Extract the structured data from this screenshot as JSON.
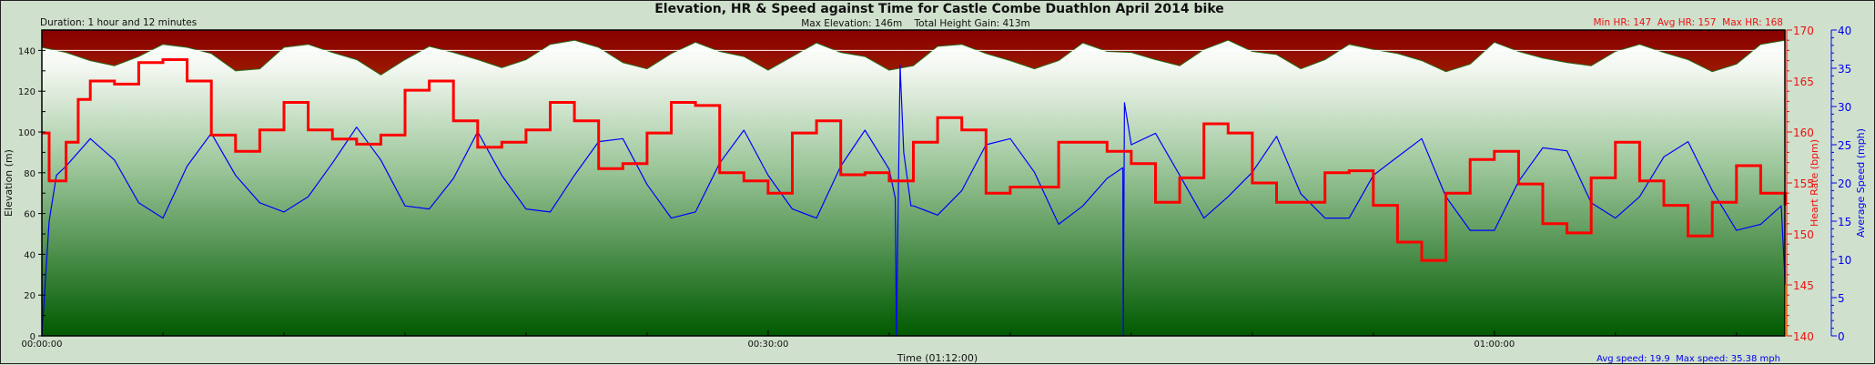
{
  "header": {
    "title": "Elevation, HR & Speed against Time for Castle Combe Duathlon April 2014 bike",
    "duration": "Duration: 1 hour and 12 minutes",
    "elevation_stats": "Max Elevation: 146m    Total Height Gain: 413m",
    "hr_stats": "Min HR: 147  Avg HR: 157  Max HR: 168"
  },
  "footer": {
    "xlabel": "Time (01:12:00)",
    "speed_stats": "Avg speed: 19.9  Max speed: 35.38 mph"
  },
  "colors": {
    "hr": "#ff0000",
    "speed": "#0000ff",
    "elevation_above": "#8b0000",
    "ground_top": "#ffffff",
    "ground_bottom": "#005a00",
    "reference_line": "#ffffff"
  },
  "chart_data": {
    "type": "line",
    "title": "Elevation, HR & Speed against Time for Castle Combe Duathlon April 2014 bike",
    "xlabel": "Time (01:12:00)",
    "x_unit": "minutes",
    "xlim": [
      0,
      72
    ],
    "xticks": [
      {
        "value": 0,
        "label": "00:00:00"
      },
      {
        "value": 30,
        "label": "00:30:00"
      },
      {
        "value": 60,
        "label": "01:00:00"
      }
    ],
    "x_minor_step": 5,
    "axes": {
      "elevation": {
        "label": "Elevation (m)",
        "range": [
          0,
          150
        ],
        "ticks": [
          "0",
          "20",
          "40",
          "60",
          "80",
          "100",
          "120",
          "140"
        ],
        "minor_step": 10,
        "reference_line": 140
      },
      "hr": {
        "label": "Heart Rate (bpm)",
        "range": [
          140,
          170
        ],
        "ticks": [
          "140",
          "145",
          "150",
          "155",
          "160",
          "165",
          "170"
        ],
        "minor_step": 1
      },
      "speed": {
        "label": "Average Speed (mph)",
        "range": [
          0,
          40
        ],
        "ticks": [
          "0",
          "5",
          "10",
          "15",
          "20",
          "25",
          "30",
          "35",
          "40"
        ],
        "minor_step": 1
      }
    },
    "series": [
      {
        "name": "Elevation",
        "axis": "elevation",
        "type": "area",
        "x_step_minutes": 1,
        "values": [
          141.5,
          139,
          135,
          132.5,
          137,
          143,
          141.5,
          138.5,
          130,
          131,
          141.5,
          143,
          139,
          135.5,
          128,
          135.5,
          142,
          139,
          135.5,
          131.5,
          135.5,
          143,
          145,
          141.5,
          134,
          131,
          138.5,
          144,
          139.5,
          137,
          130.3,
          137,
          143.7,
          139,
          137,
          130.3,
          132.5,
          142,
          143,
          138.5,
          135,
          131,
          135,
          143.7,
          139.5,
          139,
          135.5,
          132.5,
          140.5,
          145,
          139.5,
          138,
          131,
          135.5,
          143,
          140.5,
          138.5,
          135,
          129.6,
          133.3,
          144,
          139.5,
          136.3,
          134,
          132.5,
          139.5,
          143,
          139,
          135.5,
          129.6,
          133.3,
          143,
          145
        ]
      },
      {
        "name": "Heart Rate",
        "axis": "hr",
        "type": "line",
        "points": [
          [
            0,
            159.9
          ],
          [
            0.3,
            155.2
          ],
          [
            1,
            159
          ],
          [
            1.5,
            163.2
          ],
          [
            2,
            165
          ],
          [
            3,
            164.7
          ],
          [
            4,
            166.8
          ],
          [
            5,
            167.1
          ],
          [
            6,
            165
          ],
          [
            7,
            159.7
          ],
          [
            8,
            158.1
          ],
          [
            9,
            160.2
          ],
          [
            10,
            162.9
          ],
          [
            11,
            160.2
          ],
          [
            12,
            159.3
          ],
          [
            13,
            158.8
          ],
          [
            14,
            159.7
          ],
          [
            15,
            164.1
          ],
          [
            16,
            165
          ],
          [
            17,
            161.1
          ],
          [
            18,
            158.5
          ],
          [
            19,
            159
          ],
          [
            20,
            160.2
          ],
          [
            21,
            162.9
          ],
          [
            22,
            161.1
          ],
          [
            23,
            156.4
          ],
          [
            24,
            156.9
          ],
          [
            25,
            159.9
          ],
          [
            26,
            162.9
          ],
          [
            27,
            162.6
          ],
          [
            28,
            156
          ],
          [
            29,
            155.2
          ],
          [
            30,
            154
          ],
          [
            31,
            159.9
          ],
          [
            32,
            161.1
          ],
          [
            33,
            155.8
          ],
          [
            34,
            156
          ],
          [
            35,
            155.2
          ],
          [
            36,
            159
          ],
          [
            37,
            161.4
          ],
          [
            38,
            160.2
          ],
          [
            39,
            154
          ],
          [
            40,
            154.6
          ],
          [
            41,
            154.6
          ],
          [
            42,
            159
          ],
          [
            43,
            159
          ],
          [
            44,
            158.1
          ],
          [
            45,
            156.9
          ],
          [
            46,
            153.1
          ],
          [
            47,
            155.5
          ],
          [
            48,
            160.8
          ],
          [
            49,
            159.9
          ],
          [
            50,
            155
          ],
          [
            51,
            153.1
          ],
          [
            52,
            153.1
          ],
          [
            53,
            156
          ],
          [
            54,
            156.2
          ],
          [
            55,
            152.8
          ],
          [
            56,
            149.2
          ],
          [
            57,
            147.4
          ],
          [
            58,
            154
          ],
          [
            59,
            157.3
          ],
          [
            60,
            158.1
          ],
          [
            61,
            154.9
          ],
          [
            62,
            151
          ],
          [
            63,
            150.1
          ],
          [
            64,
            155.5
          ],
          [
            65,
            159
          ],
          [
            66,
            155.2
          ],
          [
            67,
            152.8
          ],
          [
            68,
            149.8
          ],
          [
            69,
            153.1
          ],
          [
            70,
            156.7
          ],
          [
            71,
            154
          ],
          [
            72,
            152.8
          ]
        ]
      },
      {
        "name": "Average Speed",
        "axis": "speed",
        "type": "line",
        "points": [
          [
            0,
            0
          ],
          [
            0.1,
            5.1
          ],
          [
            0.3,
            15
          ],
          [
            0.6,
            21
          ],
          [
            1,
            22.2
          ],
          [
            2,
            25.8
          ],
          [
            3,
            23
          ],
          [
            4,
            17.4
          ],
          [
            5,
            15.4
          ],
          [
            6,
            22.2
          ],
          [
            7,
            26.5
          ],
          [
            8,
            21
          ],
          [
            9,
            17.4
          ],
          [
            10,
            16.2
          ],
          [
            11,
            18.2
          ],
          [
            12,
            22.6
          ],
          [
            13,
            27.3
          ],
          [
            14,
            23
          ],
          [
            15,
            17
          ],
          [
            16,
            16.6
          ],
          [
            17,
            20.6
          ],
          [
            18,
            26.7
          ],
          [
            19,
            21
          ],
          [
            20,
            16.6
          ],
          [
            21,
            16.2
          ],
          [
            22,
            21
          ],
          [
            23,
            25.4
          ],
          [
            24,
            25.8
          ],
          [
            25,
            19.8
          ],
          [
            26,
            15.4
          ],
          [
            27,
            16.2
          ],
          [
            28,
            22.6
          ],
          [
            29,
            26.9
          ],
          [
            30,
            21
          ],
          [
            31,
            16.6
          ],
          [
            32,
            15.4
          ],
          [
            33,
            22.2
          ],
          [
            34,
            26.9
          ],
          [
            35,
            21.8
          ],
          [
            35.25,
            18
          ],
          [
            35.3,
            0
          ],
          [
            35.45,
            35.38
          ],
          [
            35.6,
            24
          ],
          [
            35.9,
            17
          ],
          [
            36,
            17
          ],
          [
            37,
            15.8
          ],
          [
            38,
            19
          ],
          [
            39,
            25
          ],
          [
            40,
            25.8
          ],
          [
            41,
            21.4
          ],
          [
            42,
            14.6
          ],
          [
            43,
            17
          ],
          [
            44,
            20.6
          ],
          [
            44.65,
            22
          ],
          [
            44.67,
            0
          ],
          [
            44.72,
            30.5
          ],
          [
            45,
            25
          ],
          [
            46,
            26.5
          ],
          [
            47,
            21
          ],
          [
            48,
            15.4
          ],
          [
            49,
            18.2
          ],
          [
            50,
            21.4
          ],
          [
            51,
            26.1
          ],
          [
            52,
            18.6
          ],
          [
            53,
            15.4
          ],
          [
            54,
            15.4
          ],
          [
            55,
            21
          ],
          [
            56,
            23.4
          ],
          [
            57,
            25.8
          ],
          [
            58,
            18.2
          ],
          [
            59,
            13.8
          ],
          [
            60,
            13.8
          ],
          [
            61,
            20.2
          ],
          [
            62,
            24.6
          ],
          [
            63,
            24.2
          ],
          [
            64,
            17.4
          ],
          [
            65,
            15.4
          ],
          [
            66,
            18.2
          ],
          [
            67,
            23.4
          ],
          [
            68,
            25.4
          ],
          [
            69,
            19
          ],
          [
            70,
            13.8
          ],
          [
            71,
            14.6
          ],
          [
            71.85,
            17
          ],
          [
            72,
            7.5
          ]
        ]
      }
    ]
  }
}
